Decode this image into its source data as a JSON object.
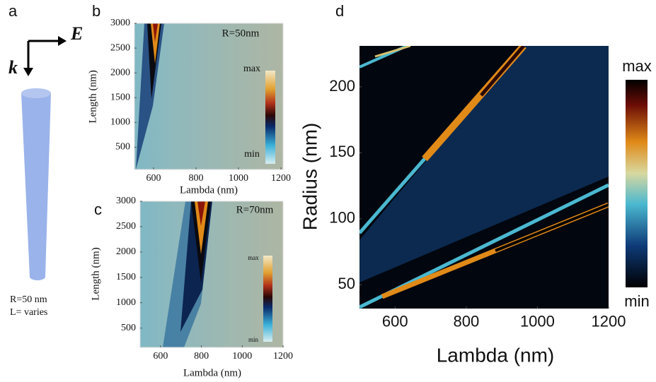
{
  "schematic": {
    "panel_label": "a",
    "field_label": "E",
    "wavevector_label": "k",
    "caption": [
      "R=50 nm",
      "L= varies"
    ]
  },
  "chart_data": [
    {
      "type": "heatmap",
      "panel_label": "b",
      "annotation": "R=50nm",
      "xlabel": "Lambda (nm)",
      "ylabel": "Length (nm)",
      "xlim": [
        510,
        1210
      ],
      "xticks": [
        600,
        800,
        1000,
        1200
      ],
      "ylim": [
        50,
        3000
      ],
      "yticks": [
        500,
        1000,
        1500,
        2000,
        2500,
        3000
      ],
      "colorbar": {
        "labels": [
          "max",
          "min"
        ]
      }
    },
    {
      "type": "heatmap",
      "panel_label": "c",
      "annotation": "R=70nm",
      "xlabel": "Lambda (nm)",
      "ylabel": "Length (nm)",
      "xlim": [
        500,
        1200
      ],
      "xticks": [
        600,
        800,
        1000,
        1200
      ],
      "ylim": [
        120,
        3000
      ],
      "yticks": [
        500,
        1000,
        1500,
        2000,
        2500,
        3000
      ],
      "colorbar": {
        "labels": [
          "max",
          "min"
        ]
      }
    },
    {
      "type": "heatmap",
      "panel_label": "d",
      "xlabel": "Lambda (nm)",
      "ylabel": "Radius (nm)",
      "xlim": [
        500,
        1200
      ],
      "xticks": [
        600,
        800,
        1000,
        1200
      ],
      "ylim": [
        32,
        231
      ],
      "yticks": [
        50,
        100,
        150,
        200
      ],
      "colorbar": {
        "labels": [
          "max",
          "min"
        ]
      }
    }
  ]
}
